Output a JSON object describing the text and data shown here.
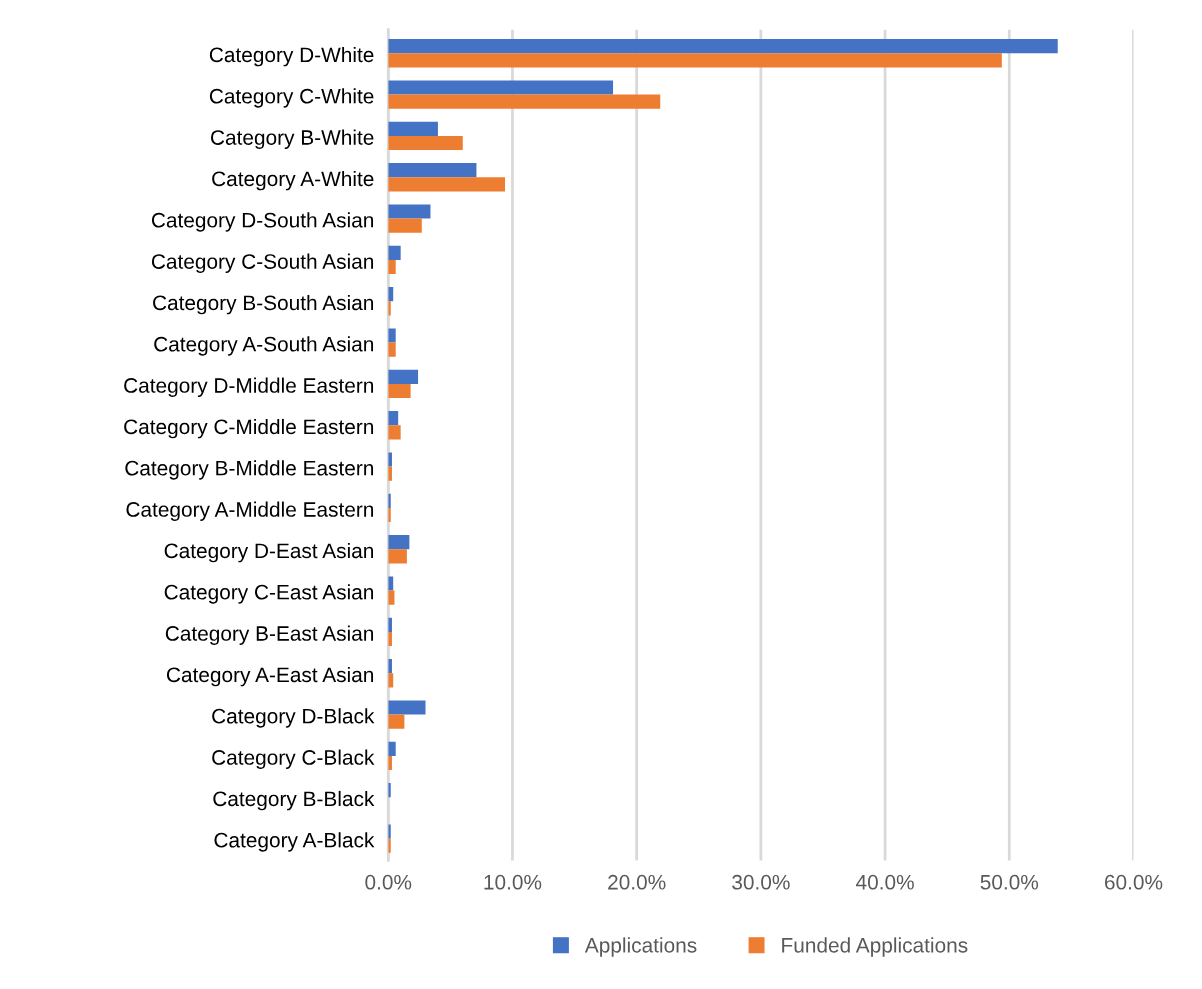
{
  "chart_data": {
    "type": "bar",
    "orientation": "horizontal",
    "categories": [
      "Category D-White",
      "Category C-White",
      "Category B-White",
      "Category A-White",
      "Category D-South Asian",
      "Category C-South Asian",
      "Category B-South Asian",
      "Category A-South Asian",
      "Category D-Middle Eastern",
      "Category C-Middle Eastern",
      "Category B-Middle Eastern",
      "Category A-Middle Eastern",
      "Category D-East Asian",
      "Category C-East Asian",
      "Category B-East Asian",
      "Category A-East Asian",
      "Category D-Black",
      "Category C-Black",
      "Category B-Black",
      "Category A-Black"
    ],
    "series": [
      {
        "name": "Applications",
        "color": "#4472c4",
        "values": [
          53.9,
          18.1,
          4.0,
          7.1,
          3.4,
          1.0,
          0.4,
          0.6,
          2.4,
          0.8,
          0.3,
          0.2,
          1.7,
          0.4,
          0.3,
          0.3,
          3.0,
          0.6,
          0.2,
          0.2
        ]
      },
      {
        "name": "Funded Applications",
        "color": "#ed7d31",
        "values": [
          49.4,
          21.9,
          6.0,
          9.4,
          2.7,
          0.6,
          0.2,
          0.6,
          1.8,
          1.0,
          0.3,
          0.2,
          1.5,
          0.5,
          0.3,
          0.4,
          1.3,
          0.3,
          0.0,
          0.2
        ]
      }
    ],
    "xlim": [
      0,
      60
    ],
    "xticks": [
      {
        "value": 0,
        "label": "0.0%"
      },
      {
        "value": 10,
        "label": "10.0%"
      },
      {
        "value": 20,
        "label": "20.0%"
      },
      {
        "value": 30,
        "label": "30.0%"
      },
      {
        "value": 40,
        "label": "40.0%"
      },
      {
        "value": 50,
        "label": "50.0%"
      },
      {
        "value": 60,
        "label": "60.0%"
      }
    ],
    "grid": "x",
    "legend": "bottom"
  }
}
